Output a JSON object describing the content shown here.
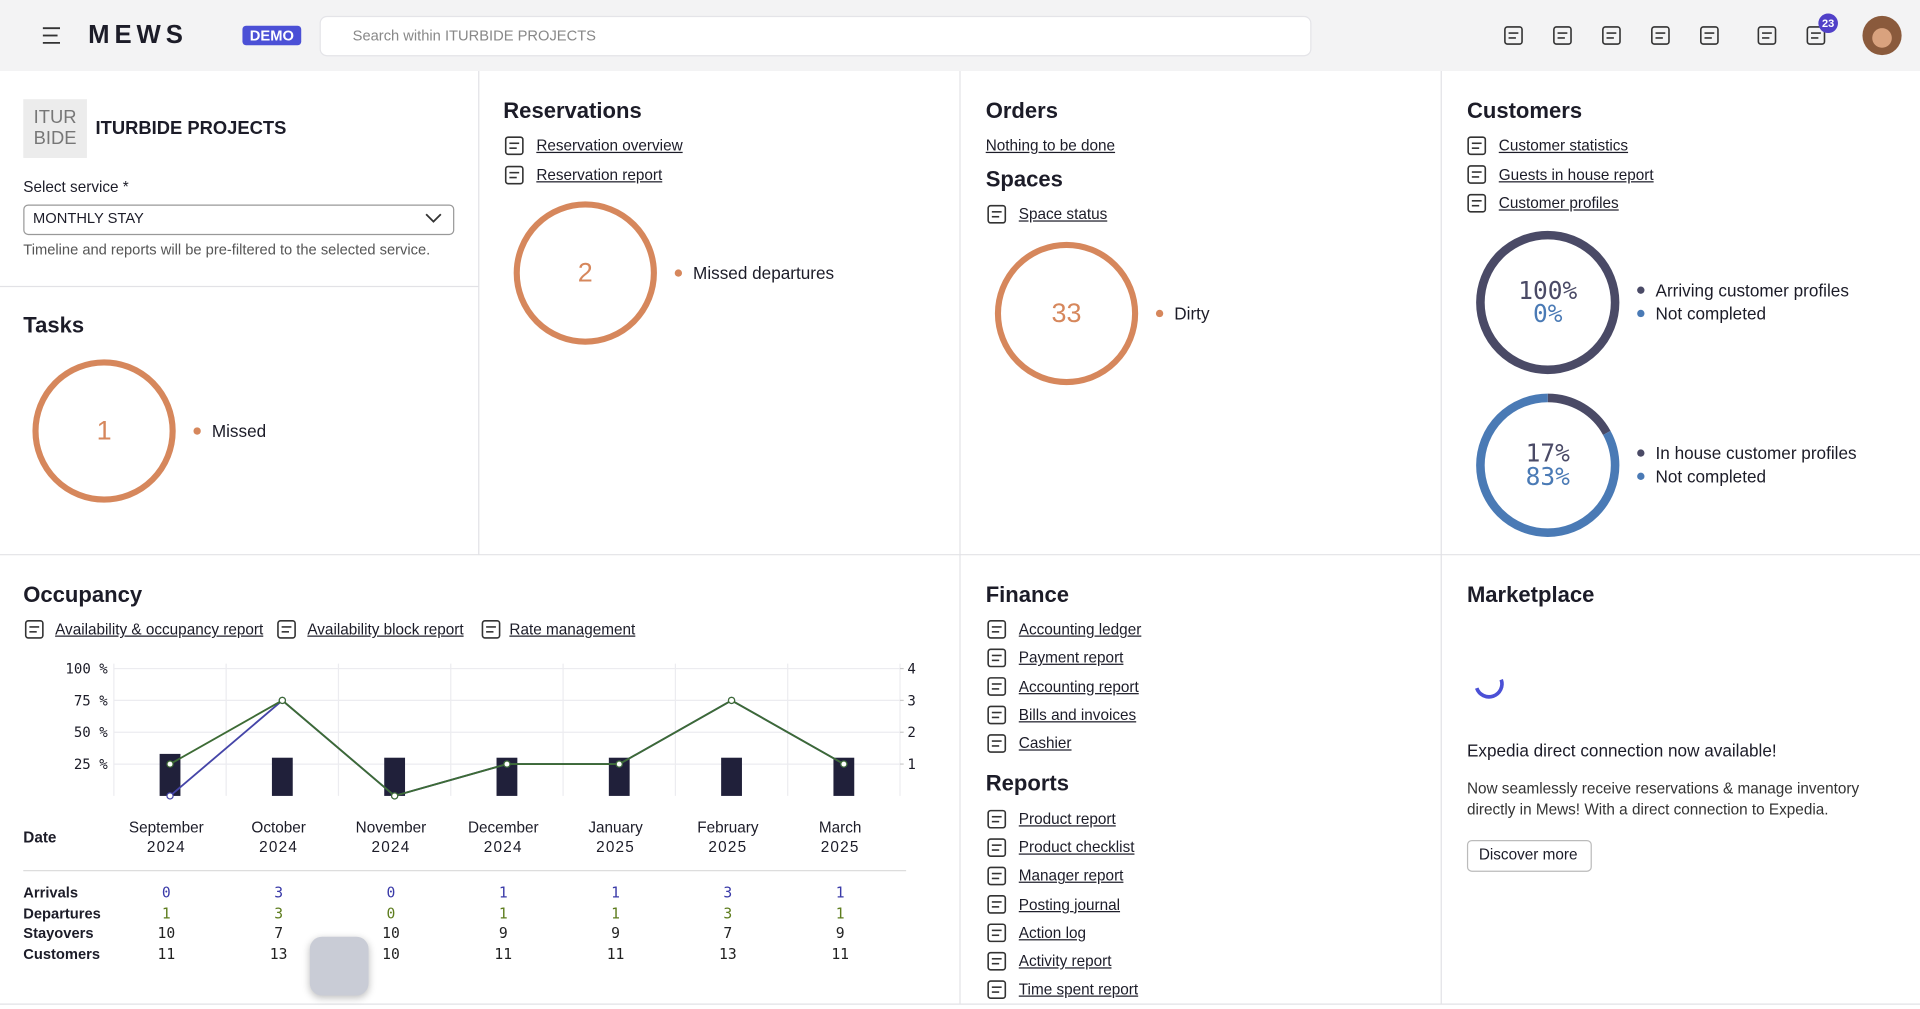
{
  "topbar": {
    "logo": "MEWS",
    "badge": "DEMO",
    "search_placeholder": "Search within ITURBIDE PROJECTS",
    "notifications": 23
  },
  "property": {
    "logo_text": [
      "ITUR",
      "BIDE"
    ],
    "name": "ITURBIDE PROJECTS",
    "select_label": "Select service *",
    "select_value": "MONTHLY STAY",
    "hint": "Timeline and reports will be pre-filtered to the selected service."
  },
  "tasks": {
    "title": "Tasks",
    "value": 1,
    "label": "Missed"
  },
  "reservations": {
    "title": "Reservations",
    "links": [
      "Reservation overview",
      "Reservation report"
    ],
    "value": 2,
    "label": "Missed departures"
  },
  "orders": {
    "title": "Orders",
    "links": [
      "Nothing to be done"
    ]
  },
  "spaces": {
    "title": "Spaces",
    "links": [
      "Space status"
    ],
    "value": 33,
    "label": "Dirty"
  },
  "customers": {
    "title": "Customers",
    "links": [
      "Customer statistics",
      "Guests in house report",
      "Customer profiles"
    ],
    "donuts": [
      {
        "values": [
          100,
          0
        ],
        "value_labels": [
          "100%",
          "0%"
        ],
        "labels": [
          "Arriving customer profiles",
          "Not completed"
        ]
      },
      {
        "values": [
          17,
          83
        ],
        "value_labels": [
          "17%",
          "83%"
        ],
        "labels": [
          "In house customer profiles",
          "Not completed"
        ]
      }
    ]
  },
  "occupancy": {
    "title": "Occupancy",
    "links": [
      "Availability & occupancy report",
      "Availability block report",
      "Rate management"
    ],
    "chart": {
      "ylim": [
        0,
        100
      ],
      "yticks": [
        {
          "value": 25,
          "label": "25 %"
        },
        {
          "value": 50,
          "label": "50 %"
        },
        {
          "value": 75,
          "label": "75 %"
        },
        {
          "value": 100,
          "label": "100 %"
        }
      ],
      "y2lim": [
        0,
        4
      ],
      "y2ticks": [
        1,
        2,
        3,
        4
      ],
      "bars": [
        33,
        30,
        30,
        30,
        30,
        30,
        30
      ]
    },
    "table": {
      "header": "Date",
      "columns": [
        [
          "September",
          "2024"
        ],
        [
          "October",
          "2024"
        ],
        [
          "November",
          "2024"
        ],
        [
          "December",
          "2024"
        ],
        [
          "January",
          "2025"
        ],
        [
          "February",
          "2025"
        ],
        [
          "March",
          "2025"
        ]
      ],
      "rows": [
        {
          "label": "Arrivals",
          "values": [
            0,
            3,
            0,
            1,
            1,
            3,
            1
          ]
        },
        {
          "label": "Departures",
          "values": [
            1,
            3,
            0,
            1,
            1,
            3,
            1
          ]
        },
        {
          "label": "Stayovers",
          "values": [
            10,
            7,
            10,
            9,
            9,
            7,
            9
          ]
        },
        {
          "label": "Customers",
          "values": [
            11,
            13,
            10,
            11,
            11,
            13,
            11
          ]
        }
      ]
    }
  },
  "finance": {
    "title": "Finance",
    "links": [
      "Accounting ledger",
      "Payment report",
      "Accounting report",
      "Bills and invoices",
      "Cashier"
    ]
  },
  "reports": {
    "title": "Reports",
    "links": [
      "Product report",
      "Product checklist",
      "Manager report",
      "Posting journal",
      "Action log",
      "Activity report",
      "Time spent report"
    ]
  },
  "marketplace": {
    "title": "Marketplace",
    "headline": "Expedia direct connection now available!",
    "body": "Now seamlessly receive reservations & manage inventory directly in Mews! With a direct connection to Expedia.",
    "button": "Discover more"
  }
}
